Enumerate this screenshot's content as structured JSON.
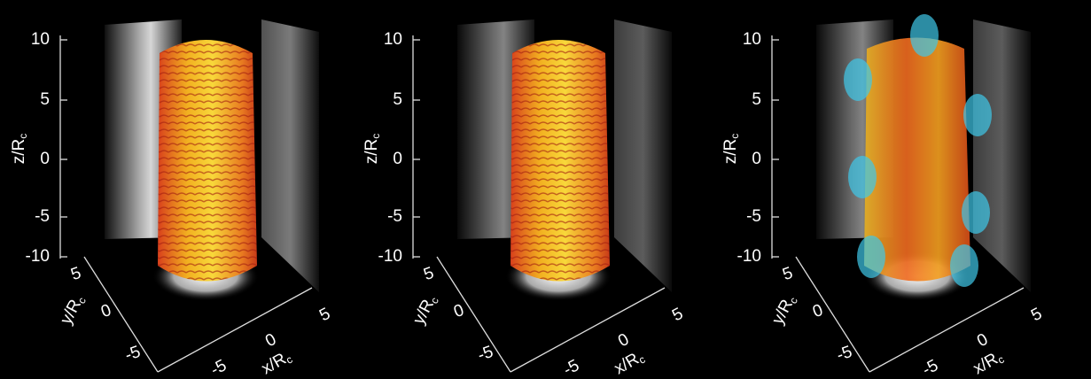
{
  "panels": [
    {
      "z_axis": {
        "label": {
          "text": "z/R",
          "sub": "c"
        },
        "ticks": [
          "10",
          "5",
          "0",
          "-5",
          "-10"
        ]
      },
      "y_axis": {
        "label": {
          "text": "y/R",
          "sub": "c"
        },
        "ticks": [
          "5",
          "0",
          "-5"
        ]
      },
      "x_axis": {
        "label": {
          "text": "x/R",
          "sub": "c"
        },
        "ticks": [
          "-5",
          "0",
          "5"
        ]
      }
    },
    {
      "z_axis": {
        "label": {
          "text": "z/R",
          "sub": "c"
        },
        "ticks": [
          "10",
          "5",
          "0",
          "-5",
          "-10"
        ]
      },
      "y_axis": {
        "label": {
          "text": "y/R",
          "sub": "c"
        },
        "ticks": [
          "5",
          "0",
          "-5"
        ]
      },
      "x_axis": {
        "label": {
          "text": "x/R",
          "sub": "c"
        },
        "ticks": [
          "-5",
          "0",
          "5"
        ]
      }
    },
    {
      "z_axis": {
        "label": {
          "text": "z/R",
          "sub": "c"
        },
        "ticks": [
          "10",
          "5",
          "0",
          "-5",
          "-10"
        ]
      },
      "y_axis": {
        "label": {
          "text": "y/R",
          "sub": "c"
        },
        "ticks": [
          "5",
          "0",
          "-5"
        ]
      },
      "x_axis": {
        "label": {
          "text": "x/R",
          "sub": "c"
        },
        "ticks": [
          "-5",
          "0",
          "5"
        ]
      }
    }
  ]
}
